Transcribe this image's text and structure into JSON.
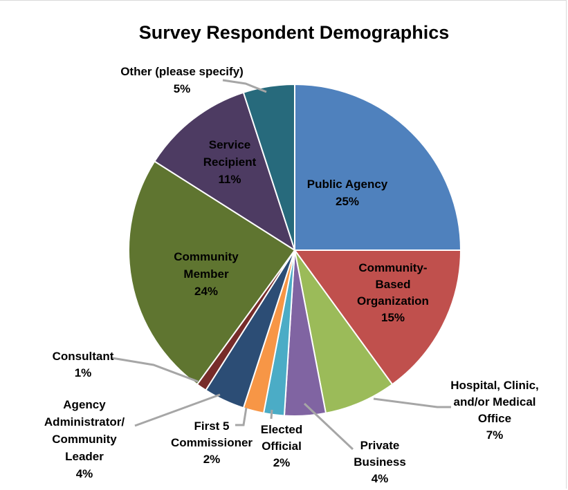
{
  "chart_data": {
    "type": "pie",
    "title": "Survey Respondent Demographics",
    "slices": [
      {
        "name": "Public Agency",
        "value": 25,
        "label_lines": [
          "Public Agency",
          "25%"
        ],
        "color": "#4f81bd"
      },
      {
        "name": "Community-Based Organization",
        "value": 15,
        "label_lines": [
          "Community-",
          "Based",
          "Organization",
          "15%"
        ],
        "color": "#c0504d"
      },
      {
        "name": "Hospital, Clinic, and/or Medical Office",
        "value": 7,
        "label_lines": [
          "Hospital, Clinic,",
          "and/or Medical",
          "Office",
          "7%"
        ],
        "color": "#9bbb59"
      },
      {
        "name": "Private Business",
        "value": 4,
        "label_lines": [
          "Private",
          "Business",
          "4%"
        ],
        "color": "#8064a2"
      },
      {
        "name": "Elected Official",
        "value": 2,
        "label_lines": [
          "Elected",
          "Official",
          "2%"
        ],
        "color": "#4bacc6"
      },
      {
        "name": "First 5 Commissioner",
        "value": 2,
        "label_lines": [
          "First 5",
          "Commissioner",
          "2%"
        ],
        "color": "#f79646"
      },
      {
        "name": "Agency Administrator/ Community Leader",
        "value": 4,
        "label_lines": [
          "Agency",
          "Administrator/",
          "Community",
          "Leader",
          "4%"
        ],
        "color": "#2c4d75"
      },
      {
        "name": "Consultant",
        "value": 1,
        "label_lines": [
          "Consultant",
          "1%"
        ],
        "color": "#772c2a"
      },
      {
        "name": "Community Member",
        "value": 24,
        "label_lines": [
          "Community",
          "Member",
          "24%"
        ],
        "color": "#5f7530"
      },
      {
        "name": "Service Recipient",
        "value": 11,
        "label_lines": [
          "Service",
          "Recipient",
          "11%"
        ],
        "color": "#4d3b62"
      },
      {
        "name": "Other (please specify)",
        "value": 5,
        "label_lines": [
          "Other (please specify)",
          "5%"
        ],
        "color": "#276a7c"
      }
    ]
  }
}
